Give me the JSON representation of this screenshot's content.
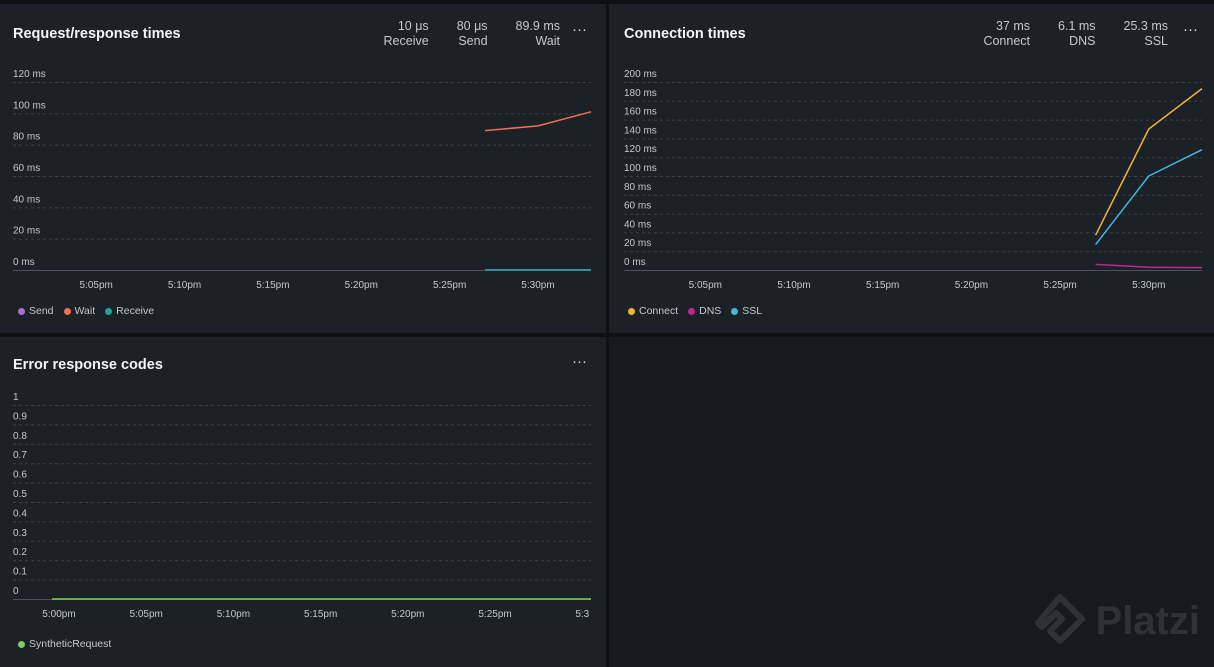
{
  "panels": {
    "rr": {
      "title": "Request/response times",
      "stats": [
        {
          "value": "10 μs",
          "label": "Receive"
        },
        {
          "value": "80 μs",
          "label": "Send"
        },
        {
          "value": "89.9 ms",
          "label": "Wait"
        }
      ]
    },
    "conn": {
      "title": "Connection times",
      "stats": [
        {
          "value": "37 ms",
          "label": "Connect"
        },
        {
          "value": "6.1 ms",
          "label": "DNS"
        },
        {
          "value": "25.3 ms",
          "label": "SSL"
        }
      ]
    },
    "err": {
      "title": "Error response codes"
    }
  },
  "more_label": "···",
  "watermark": "Platzi",
  "chart_data": [
    {
      "type": "line",
      "title": "Request/response times",
      "y_ticks": [
        "0 ms",
        "20 ms",
        "40 ms",
        "60 ms",
        "80 ms",
        "100 ms",
        "120 ms"
      ],
      "ylim": [
        0,
        120
      ],
      "x_ticks": [
        "5:05pm",
        "5:10pm",
        "5:15pm",
        "5:20pm",
        "5:25pm",
        "5:30pm"
      ],
      "x_tick_minutes": [
        5,
        10,
        15,
        20,
        25,
        30
      ],
      "xlim_minutes": [
        2.5,
        33
      ],
      "grid": true,
      "legend_position": "bottom-left",
      "series": [
        {
          "name": "Send",
          "color": "#a56fd1",
          "x": [
            27,
            30,
            33
          ],
          "y": [
            0.08,
            0.08,
            0.08
          ]
        },
        {
          "name": "Wait",
          "color": "#f07150",
          "x": [
            27,
            30,
            33
          ],
          "y": [
            89,
            92,
            101
          ]
        },
        {
          "name": "Receive",
          "color": "#1ea59a",
          "x": [
            27,
            30,
            33
          ],
          "y": [
            0.01,
            0.01,
            0.01
          ]
        }
      ]
    },
    {
      "type": "line",
      "title": "Connection times",
      "y_ticks": [
        "0 ms",
        "20 ms",
        "40 ms",
        "60 ms",
        "80 ms",
        "100 ms",
        "120 ms",
        "140 ms",
        "160 ms",
        "180 ms",
        "200 ms"
      ],
      "ylim": [
        0,
        200
      ],
      "x_ticks": [
        "5:05pm",
        "5:10pm",
        "5:15pm",
        "5:20pm",
        "5:25pm",
        "5:30pm"
      ],
      "x_tick_minutes": [
        5,
        10,
        15,
        20,
        25,
        30
      ],
      "xlim_minutes": [
        2.5,
        33
      ],
      "grid": true,
      "legend_position": "bottom-left",
      "series": [
        {
          "name": "Connect",
          "color": "#f0b530",
          "x": [
            27,
            30,
            33
          ],
          "y": [
            37,
            150,
            193
          ]
        },
        {
          "name": "DNS",
          "color": "#c2288a",
          "x": [
            27,
            30,
            33
          ],
          "y": [
            6,
            3,
            2.5
          ]
        },
        {
          "name": "SSL",
          "color": "#44b9e0",
          "x": [
            27,
            30,
            33
          ],
          "y": [
            27,
            100,
            128
          ]
        }
      ]
    },
    {
      "type": "line",
      "title": "Error response codes",
      "y_ticks": [
        "0",
        "0.1",
        "0.2",
        "0.3",
        "0.4",
        "0.5",
        "0.6",
        "0.7",
        "0.8",
        "0.9",
        "1"
      ],
      "ylim": [
        0,
        1
      ],
      "x_ticks": [
        "5:00pm",
        "5:05pm",
        "5:10pm",
        "5:15pm",
        "5:20pm",
        "5:25pm",
        "5:3"
      ],
      "x_tick_minutes": [
        0,
        5,
        10,
        15,
        20,
        25,
        30
      ],
      "xlim_minutes": [
        -0.4,
        30.5
      ],
      "grid": true,
      "legend_position": "bottom-left",
      "series": [
        {
          "name": "SyntheticRequest",
          "color": "#7dcf5f",
          "x": [
            -0.4,
            30.5
          ],
          "y": [
            0,
            0
          ]
        }
      ]
    }
  ]
}
